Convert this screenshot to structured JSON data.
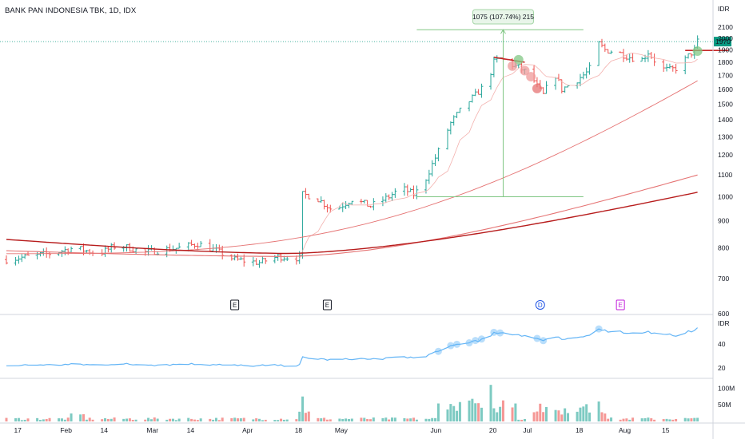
{
  "header": {
    "title": "BANK PAN INDONESIA TBK, 1D, IDX"
  },
  "colors": {
    "up": "#26a69a",
    "down": "#ef5350",
    "ma_light": "#f3b0ad",
    "ma_mid": "#e57373",
    "ma_dark": "#b71c1c",
    "measure": "#81c784",
    "rs_line": "#64b5f6",
    "price_tag": "#089981",
    "event_e": "#131722",
    "event_d": "#1e53e5",
    "event_e2": "#c21cdb"
  },
  "measure_label": "1075 (107.74%) 215",
  "last_price": "1970",
  "events": [
    {
      "label": "E",
      "color": "#131722",
      "date": "Mar 28"
    },
    {
      "label": "E",
      "color": "#131722",
      "date": "Apr 27"
    },
    {
      "label": "D",
      "color": "#1e53e5",
      "date": "Jul 5"
    },
    {
      "label": "E",
      "color": "#c21cdb",
      "date": "Jul 31"
    }
  ],
  "chart_data": [
    {
      "type": "candlestick",
      "title": "BANK PAN INDONESIA TBK, 1D, IDX",
      "ylabel": "IDR",
      "yscale": "log",
      "ylim": [
        600,
        2250
      ],
      "y_ticks": [
        "2100",
        "2000",
        "1900",
        "1800",
        "1700",
        "1600",
        "1500",
        "1400",
        "1300",
        "1200",
        "1100",
        "1000",
        "900",
        "800",
        "700",
        "600"
      ],
      "x_ticks": [
        "17",
        "Feb",
        "14",
        "Mar",
        "14",
        "Apr",
        "18",
        "May",
        "Jun",
        "20",
        "Jul",
        "18",
        "Aug",
        "15"
      ],
      "ohlc_approx": [
        {
          "period": "mid Jan - mid Mar",
          "range": [
            745,
            830
          ]
        },
        {
          "period": "late Mar - Apr",
          "range": [
            730,
            790
          ]
        },
        {
          "period": "Apr 18",
          "open": 770,
          "high": 1040,
          "low": 770,
          "close": 1020
        },
        {
          "period": "late Apr - mid May",
          "range": [
            920,
            1070
          ]
        },
        {
          "period": "Jun 12 peak",
          "close": 1830
        },
        {
          "period": "Jun 22 low",
          "close": 1500
        },
        {
          "period": "Jul 7 high",
          "high": 2075
        },
        {
          "period": "late Jul low",
          "close": 1720
        },
        {
          "period": "Aug 3 last",
          "close": 1970
        }
      ],
      "moving_averages": [
        {
          "name": "",
          "color": "#f3b0ad",
          "end_value": 1900
        },
        {
          "name": "",
          "color": "#e57373",
          "end_value": 1660
        },
        {
          "name": "",
          "color": "#e57373",
          "end_value": 1100
        },
        {
          "name": "",
          "color": "#b71c1c",
          "end_value": 1020
        }
      ],
      "measure": {
        "from": 1000,
        "to": 2075,
        "change": 1075,
        "percent": 107.74,
        "bars": 215
      },
      "last_value": 1970,
      "grid": false
    },
    {
      "type": "line",
      "ylabel": "IDR",
      "y_ticks": [
        "40",
        "20"
      ],
      "ylim": [
        14,
        62
      ],
      "values_approx": {
        "start": 22,
        "mid_Apr": 22,
        "Jun_12": 44,
        "Jul_7": 56,
        "Aug_3": 53
      }
    },
    {
      "type": "bar",
      "y_ticks": [
        "100M",
        "50M"
      ],
      "ylim": [
        0,
        120
      ],
      "note_peak": "approx 110M near Jun 12"
    }
  ]
}
